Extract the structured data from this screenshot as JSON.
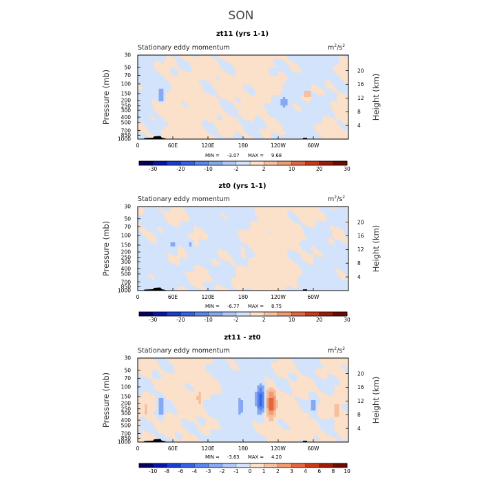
{
  "figure": {
    "title": "SON",
    "panel_left_label": "Stationary eddy momentum",
    "units_base": "m",
    "units_exp1": "2",
    "units_sep": "/s",
    "units_exp2": "2",
    "y_left_label": "Pressure (mb)",
    "y_right_label": "Height (km)",
    "min_prefix": "MIN =",
    "max_prefix": "MAX ="
  },
  "colors": {
    "palette": [
      "#04005e",
      "#0a15a6",
      "#1b3dd1",
      "#3461e6",
      "#5a86ee",
      "#86a9f3",
      "#b0c8f8",
      "#d2e3fb",
      "#fbe0ca",
      "#f6bfa0",
      "#f19b72",
      "#e4663e",
      "#c83b17",
      "#9c1d07",
      "#6a0c00"
    ],
    "terrain": "#000000"
  },
  "chart_data": [
    {
      "type": "contour",
      "subtitle": "zt11 (yrs 1-1)",
      "min_value": "-3.07",
      "max_value": "9.68",
      "colorbar_levels": [
        "-30",
        "-20",
        "-10",
        "-2",
        "2",
        "10",
        "20",
        "30"
      ],
      "x_tick_labels": [
        "0",
        "60E",
        "120E",
        "180",
        "120W",
        "60W"
      ],
      "x_tick_lon": [
        0,
        60,
        120,
        180,
        240,
        300
      ],
      "y_tick_labels": [
        "30",
        "50",
        "70",
        "100",
        "150",
        "200",
        "250",
        "300",
        "400",
        "500",
        "700",
        "850",
        "1000"
      ],
      "y_tick_values": [
        30,
        50,
        70,
        100,
        150,
        200,
        250,
        300,
        400,
        500,
        700,
        850,
        1000
      ],
      "height_tick_labels": [
        "20",
        "16",
        "12",
        "8",
        "4"
      ],
      "height_tick_values": [
        20,
        16,
        12,
        8,
        4
      ],
      "xlim": [
        0,
        360
      ],
      "ylim_pressure": [
        1000,
        30
      ],
      "field": {
        "seed": 11,
        "base_neg": 0.46,
        "detail": 0.62,
        "features": [
          {
            "lon": 40,
            "p": 160,
            "amp": -1.4,
            "wlon": 6,
            "wlp": 0.08
          },
          {
            "lon": 250,
            "p": 220,
            "amp": -0.9,
            "wlon": 10,
            "wlp": 0.12
          },
          {
            "lon": 290,
            "p": 150,
            "amp": 0.7,
            "wlon": 15,
            "wlp": 0.1
          }
        ]
      }
    },
    {
      "type": "contour",
      "subtitle": "zt0 (yrs 1-1)",
      "min_value": "-6.77",
      "max_value": "8.75",
      "colorbar_levels": [
        "-30",
        "-20",
        "-10",
        "-2",
        "2",
        "10",
        "20",
        "30"
      ],
      "x_tick_labels": [
        "0",
        "60E",
        "120E",
        "180",
        "120W",
        "60W"
      ],
      "x_tick_lon": [
        0,
        60,
        120,
        180,
        240,
        300
      ],
      "y_tick_labels": [
        "30",
        "50",
        "70",
        "100",
        "150",
        "200",
        "250",
        "300",
        "400",
        "500",
        "700",
        "850",
        "1000"
      ],
      "y_tick_values": [
        30,
        50,
        70,
        100,
        150,
        200,
        250,
        300,
        400,
        500,
        700,
        850,
        1000
      ],
      "height_tick_labels": [
        "20",
        "16",
        "12",
        "8",
        "4"
      ],
      "height_tick_values": [
        20,
        16,
        12,
        8,
        4
      ],
      "xlim": [
        0,
        360
      ],
      "ylim_pressure": [
        1000,
        30
      ],
      "field": {
        "seed": 7,
        "base_neg": 0.52,
        "detail": 0.62,
        "features": [
          {
            "lon": 60,
            "p": 150,
            "amp": -0.9,
            "wlon": 6,
            "wlp": 0.06
          },
          {
            "lon": 90,
            "p": 150,
            "amp": -0.8,
            "wlon": 5,
            "wlp": 0.06
          },
          {
            "lon": 180,
            "p": 230,
            "amp": 0.6,
            "wlon": 4,
            "wlp": 0.08
          }
        ]
      }
    },
    {
      "type": "contour",
      "subtitle": "zt11 - zt0",
      "min_value": "-3.63",
      "max_value": "4.20",
      "colorbar_levels": [
        "-10",
        "-8",
        "-6",
        "-4",
        "-3",
        "-2",
        "-1",
        "0",
        "1",
        "2",
        "3",
        "4",
        "6",
        "8",
        "10"
      ],
      "x_tick_labels": [
        "0",
        "60E",
        "120E",
        "180",
        "120W",
        "60W"
      ],
      "x_tick_lon": [
        0,
        60,
        120,
        180,
        240,
        300
      ],
      "y_tick_labels": [
        "30",
        "50",
        "70",
        "100",
        "150",
        "200",
        "250",
        "300",
        "400",
        "500",
        "700",
        "850",
        "1000"
      ],
      "y_tick_values": [
        30,
        50,
        70,
        100,
        150,
        200,
        250,
        300,
        400,
        500,
        700,
        850,
        1000
      ],
      "height_tick_labels": [
        "20",
        "16",
        "12",
        "8",
        "4"
      ],
      "height_tick_values": [
        20,
        16,
        12,
        8,
        4
      ],
      "xlim": [
        0,
        360
      ],
      "ylim_pressure": [
        1000,
        30
      ],
      "field": {
        "seed": 3,
        "base_neg": 0.5,
        "detail": 0.65,
        "features": [
          {
            "lon": 210,
            "p": 170,
            "amp": -3.6,
            "wlon": 7,
            "wlp": 0.13
          },
          {
            "lon": 228,
            "p": 200,
            "amp": 3.2,
            "wlon": 8,
            "wlp": 0.14
          },
          {
            "lon": 40,
            "p": 220,
            "amp": -1.4,
            "wlon": 5,
            "wlp": 0.12
          },
          {
            "lon": 105,
            "p": 160,
            "amp": 1.1,
            "wlon": 4,
            "wlp": 0.08
          },
          {
            "lon": 175,
            "p": 230,
            "amp": -1.2,
            "wlon": 6,
            "wlp": 0.12
          },
          {
            "lon": 300,
            "p": 220,
            "amp": -1.0,
            "wlon": 6,
            "wlp": 0.12
          },
          {
            "lon": 340,
            "p": 260,
            "amp": 0.9,
            "wlon": 6,
            "wlp": 0.12
          },
          {
            "lon": 15,
            "p": 260,
            "amp": 0.8,
            "wlon": 5,
            "wlp": 0.1
          }
        ]
      }
    }
  ]
}
